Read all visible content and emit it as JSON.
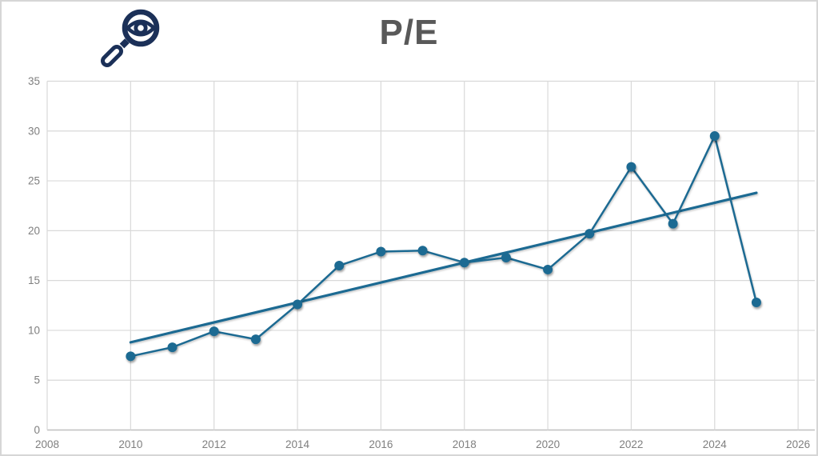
{
  "header": {
    "title": "P/E",
    "icon": "magnifier-eye-icon"
  },
  "chart_data": {
    "type": "line",
    "title": "P/E",
    "x": [
      2010,
      2011,
      2012,
      2013,
      2014,
      2015,
      2016,
      2017,
      2018,
      2019,
      2020,
      2021,
      2022,
      2023,
      2024,
      2025
    ],
    "series": [
      {
        "name": "P/E",
        "values": [
          7.4,
          8.3,
          9.9,
          9.1,
          12.6,
          16.5,
          17.9,
          18.0,
          16.8,
          17.3,
          16.1,
          19.7,
          26.4,
          20.7,
          29.5,
          12.8
        ]
      }
    ],
    "trendline": {
      "x_start": 2010,
      "y_start": 8.8,
      "x_end": 2025,
      "y_end": 23.8
    },
    "xlabel": "",
    "ylabel": "",
    "xlim": [
      2008,
      2026.4
    ],
    "ylim": [
      0,
      35
    ],
    "x_ticks": [
      2008,
      2010,
      2012,
      2014,
      2016,
      2018,
      2020,
      2022,
      2024,
      2026
    ],
    "y_ticks": [
      0,
      5,
      10,
      15,
      20,
      25,
      30,
      35
    ],
    "grid": true,
    "legend": "none",
    "colors": {
      "series": "#1f6a92",
      "grid": "#d9d9d9",
      "axis_line": "#bfbfbf",
      "tick_label": "#7f7f7f",
      "title": "#595959",
      "icon": "#1b3058",
      "background": "#ffffff",
      "border": "#d6d6d6"
    }
  }
}
